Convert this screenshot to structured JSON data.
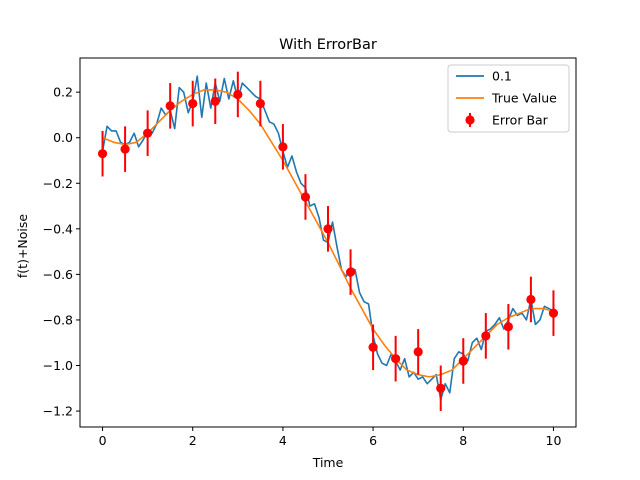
{
  "chart_data": {
    "type": "line",
    "title": "With ErrorBar",
    "xlabel": "Time",
    "ylabel": "f(t)+Noise",
    "xlim": [
      -0.5,
      10.5
    ],
    "ylim": [
      -1.27,
      0.35
    ],
    "xticks": [
      0,
      2,
      4,
      6,
      8,
      10
    ],
    "xtick_labels": [
      "0",
      "2",
      "4",
      "6",
      "8",
      "10"
    ],
    "yticks": [
      -1.2,
      -1.0,
      -0.8,
      -0.6,
      -0.4,
      -0.2,
      0.0,
      0.2
    ],
    "ytick_labels": [
      "−1.2",
      "−1.0",
      "−0.8",
      "−0.6",
      "−0.4",
      "−0.2",
      "0.0",
      "0.2"
    ],
    "grid": false,
    "legend_position": "top-right",
    "series": [
      {
        "name": "0.1",
        "kind": "line",
        "color": "#1f77b4",
        "x": [
          0.0,
          0.1,
          0.2,
          0.3,
          0.4,
          0.5,
          0.6,
          0.7,
          0.8,
          0.9,
          1.0,
          1.1,
          1.2,
          1.3,
          1.4,
          1.5,
          1.6,
          1.7,
          1.8,
          1.9,
          2.0,
          2.1,
          2.2,
          2.3,
          2.4,
          2.5,
          2.6,
          2.7,
          2.8,
          2.9,
          3.0,
          3.1,
          3.2,
          3.3,
          3.4,
          3.5,
          3.6,
          3.7,
          3.8,
          3.9,
          4.0,
          4.1,
          4.2,
          4.3,
          4.4,
          4.5,
          4.6,
          4.7,
          4.8,
          4.9,
          5.0,
          5.1,
          5.2,
          5.3,
          5.4,
          5.5,
          5.6,
          5.7,
          5.8,
          5.9,
          6.0,
          6.1,
          6.2,
          6.3,
          6.4,
          6.5,
          6.6,
          6.7,
          6.8,
          6.9,
          7.0,
          7.1,
          7.2,
          7.3,
          7.4,
          7.5,
          7.6,
          7.7,
          7.8,
          7.9,
          8.0,
          8.1,
          8.2,
          8.3,
          8.4,
          8.5,
          8.6,
          8.7,
          8.8,
          8.9,
          9.0,
          9.1,
          9.2,
          9.3,
          9.4,
          9.5,
          9.6,
          9.7,
          9.8,
          9.9,
          10.0
        ],
        "y": [
          -0.06,
          0.05,
          0.03,
          0.03,
          -0.02,
          -0.03,
          -0.02,
          0.02,
          -0.04,
          -0.01,
          0.03,
          0.02,
          0.06,
          0.13,
          0.1,
          0.12,
          0.04,
          0.22,
          0.2,
          0.11,
          0.16,
          0.27,
          0.09,
          0.24,
          0.13,
          0.24,
          0.16,
          0.26,
          0.17,
          0.25,
          0.17,
          0.24,
          0.22,
          0.2,
          0.18,
          0.17,
          0.12,
          0.07,
          0.06,
          0.02,
          -0.06,
          -0.13,
          -0.08,
          -0.15,
          -0.2,
          -0.22,
          -0.3,
          -0.29,
          -0.35,
          -0.45,
          -0.46,
          -0.37,
          -0.48,
          -0.58,
          -0.61,
          -0.57,
          -0.58,
          -0.68,
          -0.72,
          -0.73,
          -0.87,
          -0.95,
          -0.99,
          -1.0,
          -0.95,
          -0.98,
          -1.02,
          -0.97,
          -1.05,
          -1.03,
          -1.06,
          -1.05,
          -1.08,
          -1.06,
          -1.04,
          -1.15,
          -1.08,
          -1.12,
          -0.97,
          -0.94,
          -0.95,
          -0.98,
          -0.9,
          -0.88,
          -0.93,
          -0.85,
          -0.84,
          -0.82,
          -0.79,
          -0.84,
          -0.8,
          -0.75,
          -0.78,
          -0.77,
          -0.8,
          -0.71,
          -0.82,
          -0.8,
          -0.74,
          -0.75,
          -0.76
        ]
      },
      {
        "name": "True Value",
        "kind": "line",
        "color": "#ff7f0e",
        "x": [
          0.0,
          0.25,
          0.5,
          0.75,
          1.0,
          1.25,
          1.5,
          1.75,
          2.0,
          2.25,
          2.5,
          2.75,
          3.0,
          3.25,
          3.5,
          3.75,
          4.0,
          4.25,
          4.5,
          4.75,
          5.0,
          5.25,
          5.5,
          5.75,
          6.0,
          6.25,
          6.5,
          6.75,
          7.0,
          7.25,
          7.5,
          7.75,
          8.0,
          8.25,
          8.5,
          8.75,
          9.0,
          9.25,
          9.5,
          9.75,
          10.0
        ],
        "y": [
          0.0,
          -0.02,
          -0.03,
          -0.02,
          0.02,
          0.07,
          0.12,
          0.16,
          0.19,
          0.21,
          0.21,
          0.2,
          0.17,
          0.12,
          0.06,
          -0.02,
          -0.1,
          -0.19,
          -0.28,
          -0.37,
          -0.46,
          -0.56,
          -0.66,
          -0.75,
          -0.84,
          -0.91,
          -0.97,
          -1.02,
          -1.04,
          -1.05,
          -1.04,
          -1.02,
          -0.97,
          -0.92,
          -0.87,
          -0.82,
          -0.79,
          -0.77,
          -0.75,
          -0.75,
          -0.76
        ]
      },
      {
        "name": "Error Bar",
        "kind": "errorbar",
        "color": "#ff0000",
        "x": [
          0.0,
          0.5,
          1.0,
          1.5,
          2.0,
          2.5,
          3.0,
          3.5,
          4.0,
          4.5,
          5.0,
          5.5,
          6.0,
          6.5,
          7.0,
          7.5,
          8.0,
          8.5,
          9.0,
          9.5,
          10.0
        ],
        "y": [
          -0.07,
          -0.05,
          0.02,
          0.14,
          0.15,
          0.16,
          0.19,
          0.15,
          -0.04,
          -0.26,
          -0.4,
          -0.59,
          -0.92,
          -0.97,
          -0.94,
          -1.1,
          -0.98,
          -0.87,
          -0.83,
          -0.71,
          -0.77
        ],
        "yerr": 0.1
      }
    ]
  }
}
